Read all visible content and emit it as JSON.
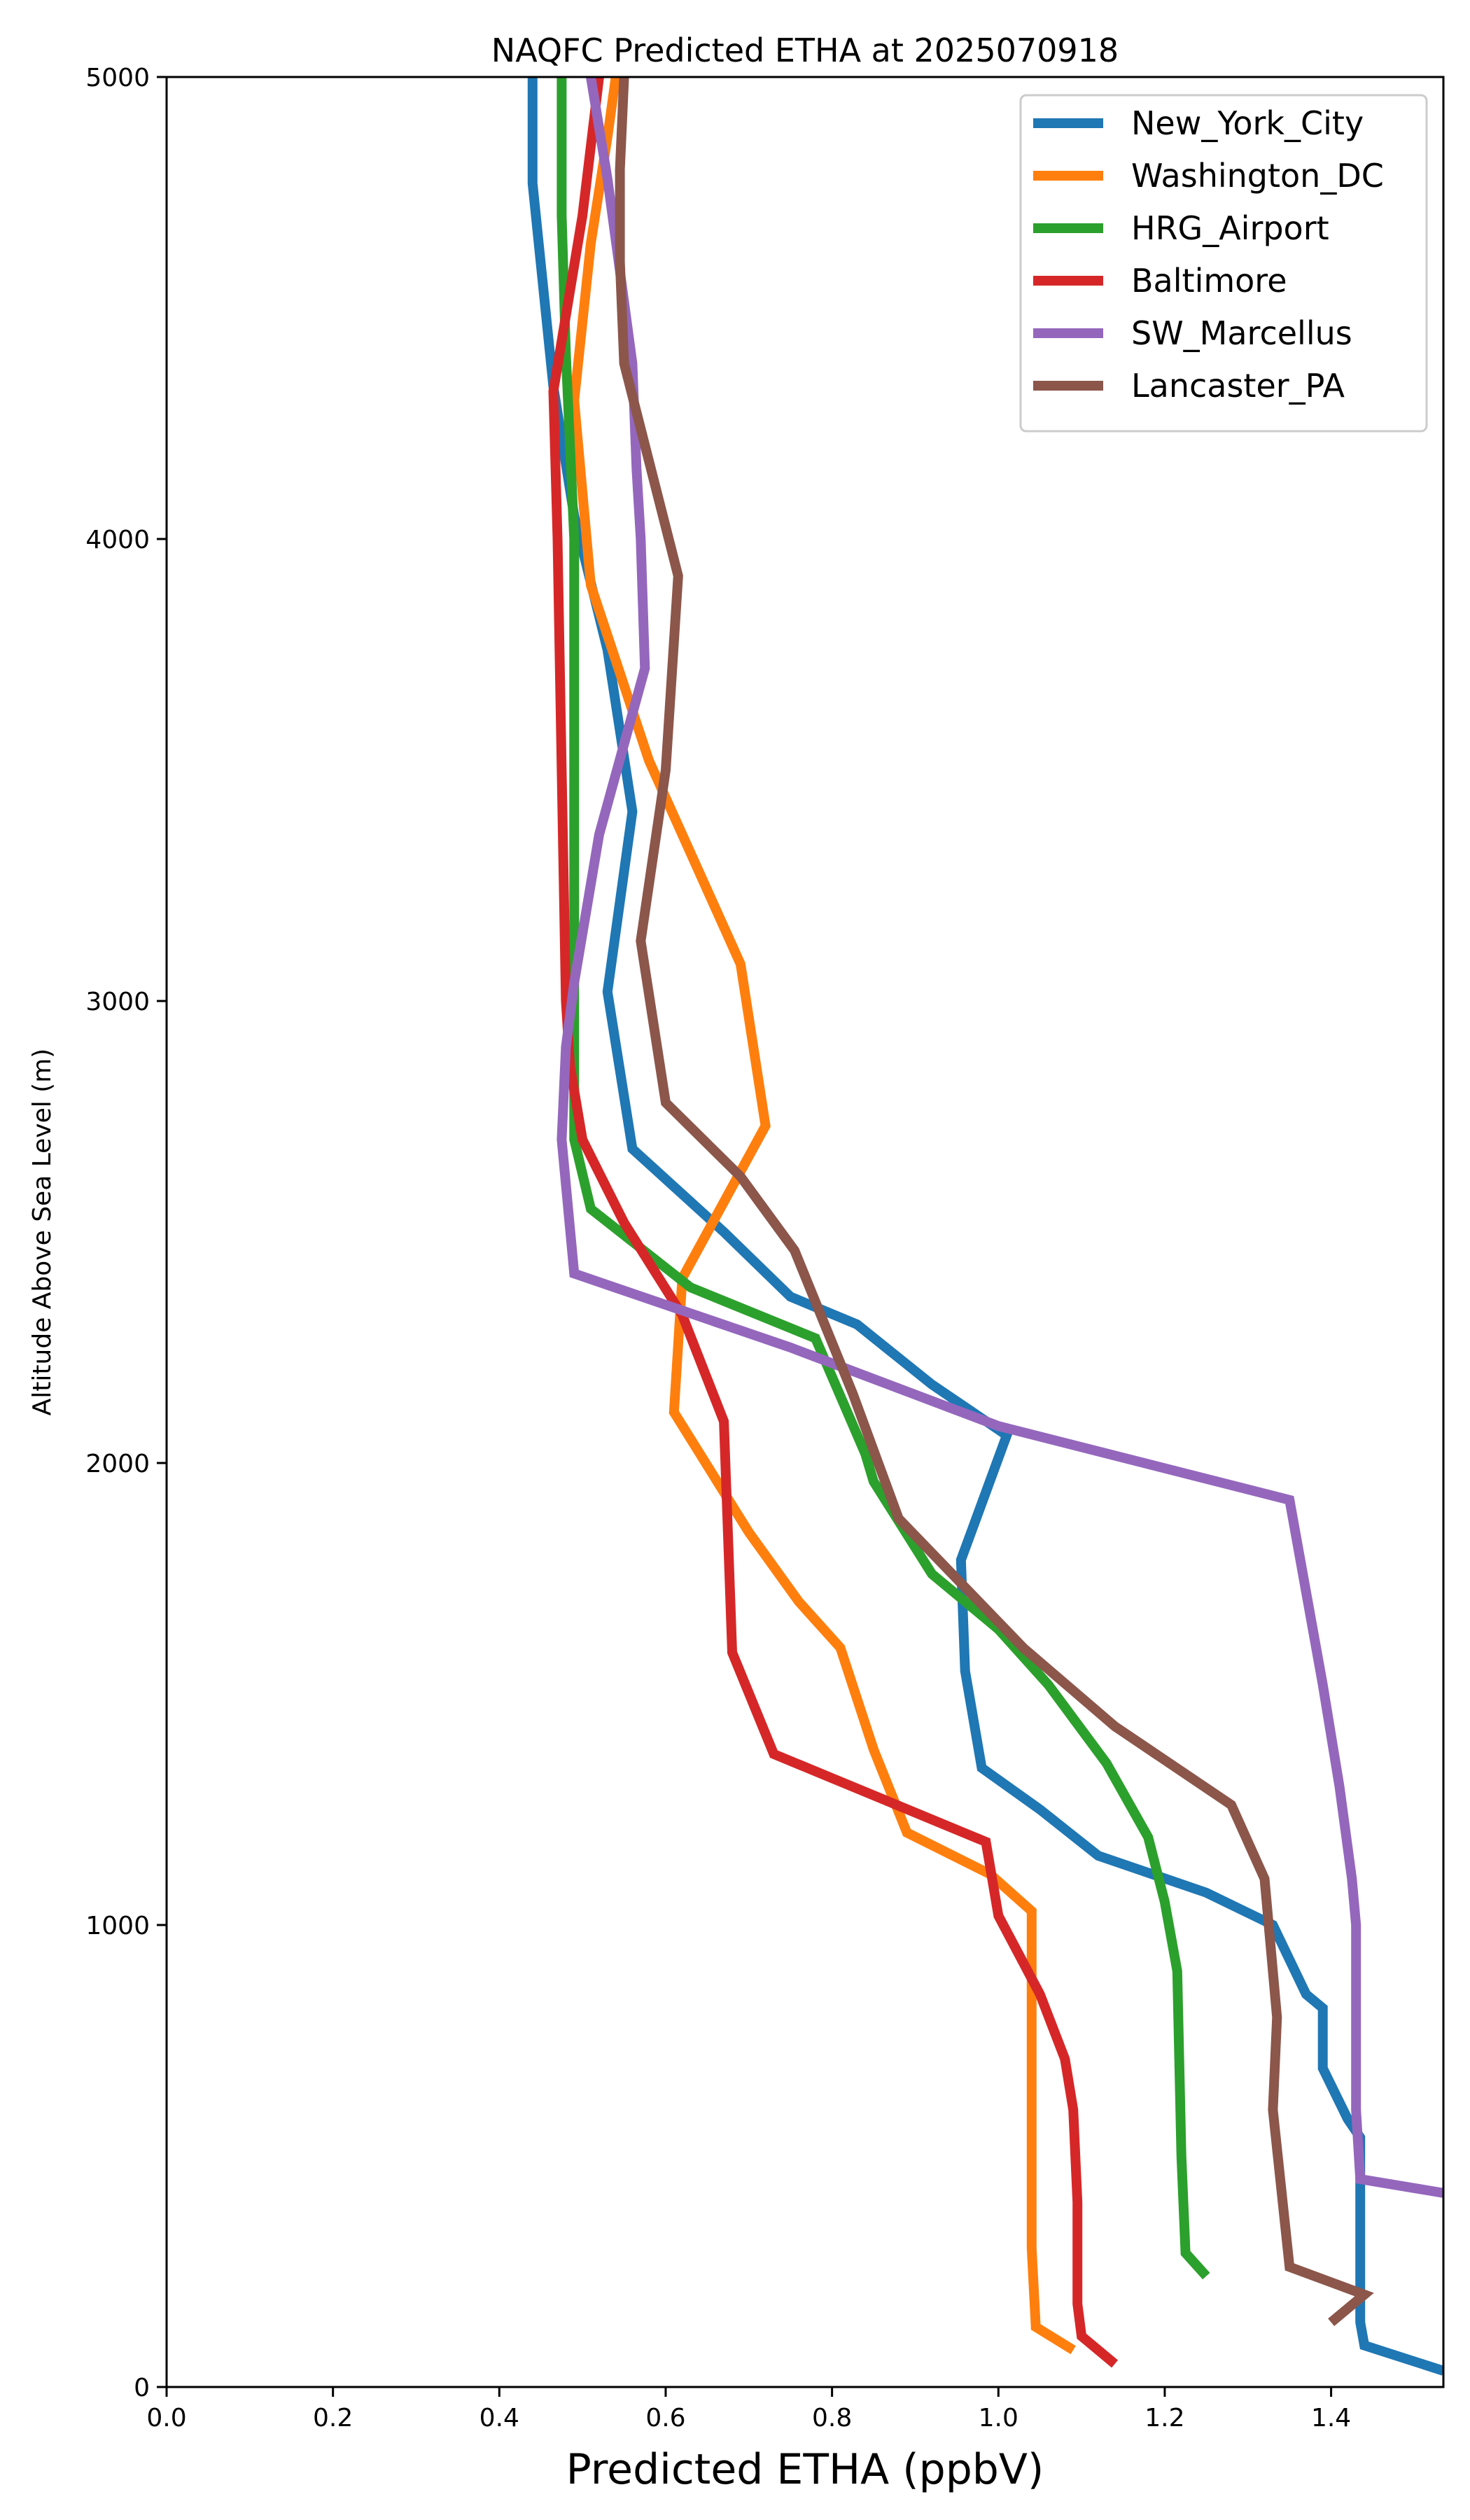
{
  "chart_data": {
    "type": "line",
    "title": "NAQFC Predicted ETHA at 2025070918",
    "xlabel": "Predicted ETHA (ppbV)",
    "ylabel": "Altitude Above Sea Level (m)",
    "xlim": [
      0.0,
      1.535
    ],
    "ylim": [
      0,
      5000
    ],
    "xticks": [
      "0.0",
      "0.2",
      "0.4",
      "0.6",
      "0.8",
      "1.0",
      "1.2",
      "1.4"
    ],
    "yticks": [
      "0",
      "1000",
      "2000",
      "3000",
      "4000",
      "5000"
    ],
    "grid": false,
    "legend_position": "top-right",
    "series": [
      {
        "name": "New_York_City",
        "color": "#1f77b4",
        "points": [
          [
            1.535,
            35
          ],
          [
            1.44,
            90
          ],
          [
            1.435,
            140
          ],
          [
            1.435,
            280
          ],
          [
            1.435,
            540
          ],
          [
            1.42,
            580
          ],
          [
            1.39,
            690
          ],
          [
            1.39,
            820
          ],
          [
            1.37,
            850
          ],
          [
            1.33,
            1000
          ],
          [
            1.25,
            1070
          ],
          [
            1.12,
            1150
          ],
          [
            1.05,
            1250
          ],
          [
            0.98,
            1340
          ],
          [
            0.96,
            1550
          ],
          [
            0.955,
            1790
          ],
          [
            1.01,
            2060
          ],
          [
            0.92,
            2170
          ],
          [
            0.83,
            2300
          ],
          [
            0.75,
            2360
          ],
          [
            0.67,
            2500
          ],
          [
            0.56,
            2680
          ],
          [
            0.53,
            3020
          ],
          [
            0.56,
            3410
          ],
          [
            0.53,
            3760
          ],
          [
            0.49,
            4050
          ],
          [
            0.465,
            4330
          ],
          [
            0.44,
            4770
          ],
          [
            0.44,
            5000
          ]
        ]
      },
      {
        "name": "Washington_DC",
        "color": "#ff7f0e",
        "points": [
          [
            1.09,
            80
          ],
          [
            1.045,
            130
          ],
          [
            1.04,
            300
          ],
          [
            1.04,
            700
          ],
          [
            1.04,
            1030
          ],
          [
            0.99,
            1110
          ],
          [
            0.89,
            1200
          ],
          [
            0.85,
            1380
          ],
          [
            0.81,
            1600
          ],
          [
            0.76,
            1700
          ],
          [
            0.7,
            1850
          ],
          [
            0.61,
            2110
          ],
          [
            0.62,
            2400
          ],
          [
            0.72,
            2730
          ],
          [
            0.69,
            3080
          ],
          [
            0.58,
            3520
          ],
          [
            0.51,
            3900
          ],
          [
            0.49,
            4300
          ],
          [
            0.51,
            4640
          ],
          [
            0.53,
            4870
          ],
          [
            0.54,
            5000
          ]
        ]
      },
      {
        "name": "HRG_Airport",
        "color": "#2ca02c",
        "points": [
          [
            1.25,
            240
          ],
          [
            1.225,
            290
          ],
          [
            1.22,
            500
          ],
          [
            1.215,
            900
          ],
          [
            1.2,
            1050
          ],
          [
            1.18,
            1190
          ],
          [
            1.13,
            1350
          ],
          [
            1.06,
            1520
          ],
          [
            1.0,
            1640
          ],
          [
            0.92,
            1760
          ],
          [
            0.85,
            1960
          ],
          [
            0.84,
            2020
          ],
          [
            0.78,
            2270
          ],
          [
            0.63,
            2380
          ],
          [
            0.51,
            2550
          ],
          [
            0.49,
            2700
          ],
          [
            0.49,
            3000
          ],
          [
            0.49,
            3500
          ],
          [
            0.49,
            4000
          ],
          [
            0.48,
            4400
          ],
          [
            0.475,
            4700
          ],
          [
            0.475,
            5000
          ]
        ]
      },
      {
        "name": "Baltimore",
        "color": "#d62728",
        "points": [
          [
            1.14,
            50
          ],
          [
            1.1,
            110
          ],
          [
            1.095,
            180
          ],
          [
            1.095,
            400
          ],
          [
            1.09,
            600
          ],
          [
            1.08,
            710
          ],
          [
            1.05,
            850
          ],
          [
            1.0,
            1020
          ],
          [
            0.985,
            1180
          ],
          [
            0.73,
            1370
          ],
          [
            0.68,
            1590
          ],
          [
            0.675,
            1840
          ],
          [
            0.67,
            2090
          ],
          [
            0.62,
            2320
          ],
          [
            0.55,
            2520
          ],
          [
            0.5,
            2700
          ],
          [
            0.485,
            2860
          ],
          [
            0.48,
            3000
          ],
          [
            0.475,
            3500
          ],
          [
            0.47,
            4000
          ],
          [
            0.465,
            4320
          ],
          [
            0.5,
            4700
          ],
          [
            0.52,
            5000
          ]
        ]
      },
      {
        "name": "SW_Marcellus",
        "color": "#9467bd",
        "points": [
          [
            1.535,
            420
          ],
          [
            1.435,
            450
          ],
          [
            1.43,
            600
          ],
          [
            1.43,
            800
          ],
          [
            1.43,
            1000
          ],
          [
            1.425,
            1100
          ],
          [
            1.41,
            1300
          ],
          [
            1.39,
            1520
          ],
          [
            1.35,
            1920
          ],
          [
            1.0,
            2080
          ],
          [
            0.75,
            2250
          ],
          [
            0.49,
            2410
          ],
          [
            0.475,
            2700
          ],
          [
            0.48,
            2900
          ],
          [
            0.49,
            3040
          ],
          [
            0.52,
            3360
          ],
          [
            0.575,
            3720
          ],
          [
            0.57,
            4000
          ],
          [
            0.565,
            4150
          ],
          [
            0.56,
            4380
          ],
          [
            0.53,
            4780
          ],
          [
            0.51,
            5000
          ]
        ]
      },
      {
        "name": "Lancaster_PA",
        "color": "#8c564b",
        "points": [
          [
            1.4,
            140
          ],
          [
            1.44,
            200
          ],
          [
            1.35,
            260
          ],
          [
            1.33,
            600
          ],
          [
            1.335,
            800
          ],
          [
            1.32,
            1100
          ],
          [
            1.28,
            1260
          ],
          [
            1.14,
            1430
          ],
          [
            1.03,
            1600
          ],
          [
            0.88,
            1880
          ],
          [
            0.825,
            2150
          ],
          [
            0.755,
            2460
          ],
          [
            0.69,
            2620
          ],
          [
            0.6,
            2780
          ],
          [
            0.57,
            3130
          ],
          [
            0.6,
            3500
          ],
          [
            0.615,
            3920
          ],
          [
            0.55,
            4380
          ],
          [
            0.545,
            4600
          ],
          [
            0.545,
            4800
          ],
          [
            0.55,
            5000
          ]
        ]
      }
    ]
  }
}
